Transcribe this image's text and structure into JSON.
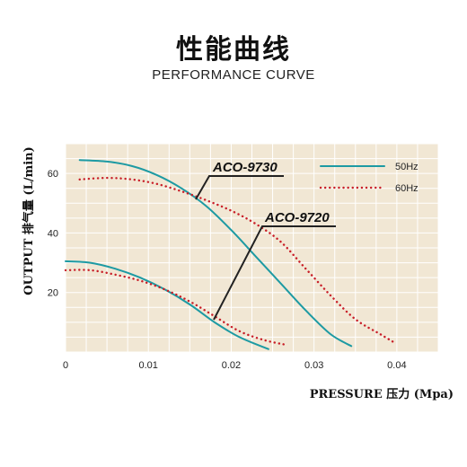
{
  "header": {
    "title": "性能曲线",
    "subtitle": "PERFORMANCE CURVE"
  },
  "colors": {
    "plot_bg": "#f1e7d4",
    "grid": "#ffffff",
    "series_50hz": "#1d9aa3",
    "series_60hz": "#c81e28",
    "annotation": "#222222"
  },
  "chart_data": {
    "type": "line",
    "xlabel": "PRESSURE 压力 (Mpa)",
    "ylabel": "OUTPUT 排气量 (L/min)",
    "xlim": [
      0,
      0.045
    ],
    "ylim": [
      0,
      70
    ],
    "x_ticks": [
      "0",
      "0.01",
      "0.02",
      "0.03",
      "0.04"
    ],
    "y_ticks": [
      "20",
      "40",
      "60"
    ],
    "grid": true,
    "legend": {
      "placement": "top-right",
      "entries": [
        {
          "label": "50Hz",
          "style": "solid"
        },
        {
          "label": "60Hz",
          "style": "dotted"
        }
      ]
    },
    "annotations": [
      {
        "text": "ACO-9730"
      },
      {
        "text": "ACO-9720"
      }
    ],
    "series": [
      {
        "name": "50Hz",
        "model": "ACO-9730",
        "style": "solid",
        "x": [
          0.0017,
          0.005,
          0.008,
          0.011,
          0.014,
          0.017,
          0.02,
          0.023,
          0.026,
          0.029,
          0.032,
          0.0345
        ],
        "y": [
          64.5,
          64,
          62.5,
          59.5,
          55,
          49,
          41,
          32,
          23,
          14,
          6,
          2
        ]
      },
      {
        "name": "60Hz",
        "model": "ACO-9730",
        "style": "dotted",
        "x": [
          0.0017,
          0.005,
          0.008,
          0.011,
          0.014,
          0.017,
          0.02,
          0.023,
          0.026,
          0.029,
          0.032,
          0.035,
          0.038,
          0.0395
        ],
        "y": [
          58,
          58.5,
          58,
          56.5,
          54,
          51,
          47.5,
          43,
          37,
          28,
          19,
          11,
          6,
          3.5
        ]
      },
      {
        "name": "50Hz",
        "model": "ACO-9720",
        "style": "solid",
        "x": [
          0,
          0.003,
          0.006,
          0.009,
          0.012,
          0.015,
          0.018,
          0.021,
          0.0245
        ],
        "y": [
          30.5,
          30,
          28,
          25,
          21,
          16,
          10,
          5,
          1
        ]
      },
      {
        "name": "60Hz",
        "model": "ACO-9720",
        "style": "dotted",
        "x": [
          0,
          0.003,
          0.006,
          0.009,
          0.012,
          0.015,
          0.018,
          0.021,
          0.024,
          0.0265
        ],
        "y": [
          27.5,
          27.5,
          26,
          24,
          21,
          17,
          12,
          7,
          4,
          2.5
        ]
      }
    ]
  }
}
